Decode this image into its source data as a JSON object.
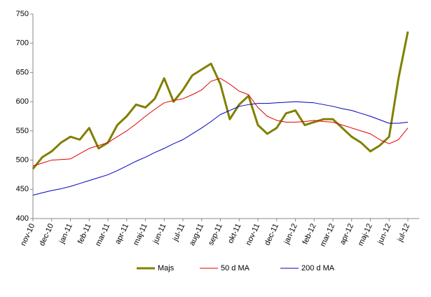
{
  "chart_data": {
    "type": "line",
    "categories": [
      "nov-10",
      null,
      "dec-10",
      null,
      "jan-11",
      null,
      "feb-11",
      null,
      "mar-11",
      null,
      "apr-11",
      null,
      "maj-11",
      null,
      "jun-11",
      null,
      "jul-11",
      null,
      "aug-11",
      null,
      "sep-11",
      null,
      "okt-11",
      null,
      "nov-11",
      null,
      "dec-11",
      null,
      "jan-12",
      null,
      "feb-12",
      null,
      "mar-12",
      null,
      "apr-12",
      null,
      "maj-12",
      null,
      "jun-12",
      null,
      "jul-12"
    ],
    "series": [
      {
        "name": "Majs",
        "color": "#808000",
        "values": [
          485,
          505,
          515,
          530,
          540,
          535,
          555,
          520,
          530,
          560,
          575,
          595,
          590,
          605,
          640,
          600,
          620,
          645,
          655,
          665,
          630,
          570,
          595,
          610,
          560,
          545,
          555,
          580,
          585,
          560,
          565,
          570,
          570,
          555,
          540,
          530,
          515,
          525,
          540,
          640,
          720
        ]
      },
      {
        "name": "50 d MA",
        "color": "#e00000",
        "values": [
          490,
          495,
          500,
          501,
          502,
          511,
          520,
          525,
          530,
          540,
          550,
          562,
          575,
          587,
          598,
          602,
          605,
          612,
          620,
          635,
          640,
          630,
          618,
          612,
          590,
          575,
          568,
          565,
          565,
          566,
          568,
          566,
          565,
          560,
          555,
          550,
          545,
          535,
          528,
          535,
          555
        ]
      },
      {
        "name": "200 d MA",
        "color": "#0000c0",
        "values": [
          440,
          444,
          448,
          451,
          455,
          460,
          465,
          470,
          475,
          482,
          490,
          498,
          505,
          513,
          520,
          528,
          535,
          545,
          555,
          566,
          578,
          585,
          592,
          595,
          597,
          597,
          598,
          599,
          600,
          599,
          598,
          595,
          592,
          588,
          585,
          580,
          575,
          569,
          563,
          563,
          565
        ]
      }
    ],
    "ylim": [
      400,
      750
    ],
    "yticks": [
      400,
      450,
      500,
      550,
      600,
      650,
      700,
      750
    ],
    "grid": false,
    "legend": "bottom"
  }
}
